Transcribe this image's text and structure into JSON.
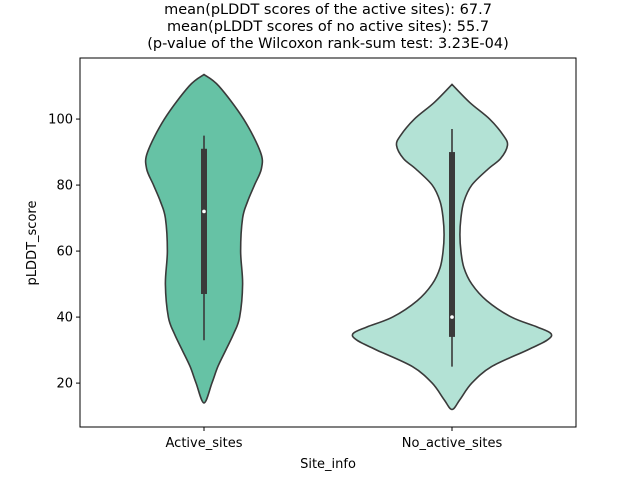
{
  "chart_data": {
    "type": "violin",
    "title_lines": [
      "mean(pLDDT scores of the active sites): 67.7",
      "mean(pLDDT scores of no active sites): 55.7",
      "(p-value of the Wilcoxon rank-sum test: 3.23E-04)"
    ],
    "xlabel": "Site_info",
    "ylabel": "pLDDT_score",
    "ylim": [
      6.7,
      118.5
    ],
    "yticks": [
      20,
      40,
      60,
      80,
      100
    ],
    "grid": false,
    "categories": [
      "Active_sites",
      "No_active_sites"
    ],
    "colors": [
      "#66c2a5",
      "#b3e2d5"
    ],
    "edge_color": "#3a3a3a",
    "series": [
      {
        "name": "Active_sites",
        "density": [
          [
            113.5,
            0
          ],
          [
            110,
            0.15
          ],
          [
            100,
            0.4
          ],
          [
            90,
            0.57
          ],
          [
            85,
            0.58
          ],
          [
            80,
            0.51
          ],
          [
            75,
            0.44
          ],
          [
            70,
            0.39
          ],
          [
            60,
            0.37
          ],
          [
            50,
            0.39
          ],
          [
            40,
            0.36
          ],
          [
            35,
            0.3
          ],
          [
            30,
            0.22
          ],
          [
            25,
            0.14
          ],
          [
            20,
            0.08
          ],
          [
            14,
            0
          ]
        ],
        "box": {
          "whisker_low": 33,
          "q1": 47,
          "median": 72,
          "q3": 91,
          "whisker_high": 95
        }
      },
      {
        "name": "No_active_sites",
        "density": [
          [
            110.5,
            0
          ],
          [
            105,
            0.18
          ],
          [
            100,
            0.38
          ],
          [
            95,
            0.52
          ],
          [
            92,
            0.56
          ],
          [
            88,
            0.49
          ],
          [
            85,
            0.37
          ],
          [
            80,
            0.2
          ],
          [
            75,
            0.12
          ],
          [
            70,
            0.09
          ],
          [
            65,
            0.08
          ],
          [
            60,
            0.09
          ],
          [
            55,
            0.12
          ],
          [
            50,
            0.2
          ],
          [
            45,
            0.35
          ],
          [
            40,
            0.6
          ],
          [
            37,
            0.86
          ],
          [
            35,
            1.0
          ],
          [
            33,
            0.96
          ],
          [
            30,
            0.76
          ],
          [
            25,
            0.4
          ],
          [
            20,
            0.2
          ],
          [
            15,
            0.08
          ],
          [
            12,
            0
          ]
        ],
        "box": {
          "whisker_low": 25,
          "q1": 34,
          "median": 40,
          "q3": 90,
          "whisker_high": 97
        }
      }
    ]
  }
}
